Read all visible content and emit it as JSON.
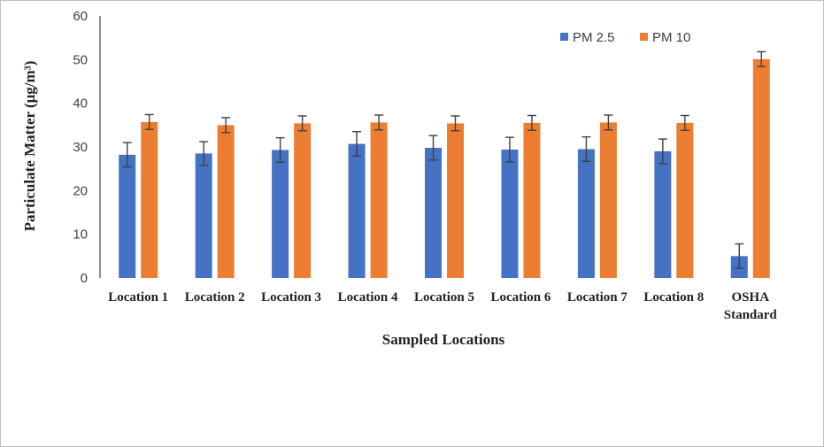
{
  "chart_data": {
    "type": "bar",
    "categories": [
      "Location 1",
      "Location 2",
      "Location 3",
      "Location 4",
      "Location 5",
      "Location 6",
      "Location 7",
      "Location 8",
      "OSHA Standard"
    ],
    "series": [
      {
        "name": "PM 2.5",
        "color": "#4472C4",
        "values": [
          28.2,
          28.5,
          29.3,
          30.7,
          29.8,
          29.4,
          29.5,
          29.0,
          5.0
        ],
        "error": [
          2.8,
          2.7,
          2.8,
          2.8,
          2.8,
          2.8,
          2.8,
          2.8,
          2.8
        ]
      },
      {
        "name": "PM 10",
        "color": "#ED7D31",
        "values": [
          35.7,
          35.0,
          35.4,
          35.6,
          35.4,
          35.5,
          35.6,
          35.5,
          50.1
        ],
        "error": [
          1.7,
          1.7,
          1.7,
          1.7,
          1.7,
          1.7,
          1.7,
          1.7,
          1.7
        ]
      }
    ],
    "xlabel": "Sampled Locations",
    "ylabel": "Particulate Matter (μg/m³)",
    "ylim": [
      0,
      60
    ],
    "yticks": [
      0,
      10,
      20,
      30,
      40,
      50,
      60
    ],
    "grid": false,
    "legend": "top-right",
    "error_bars": true
  }
}
